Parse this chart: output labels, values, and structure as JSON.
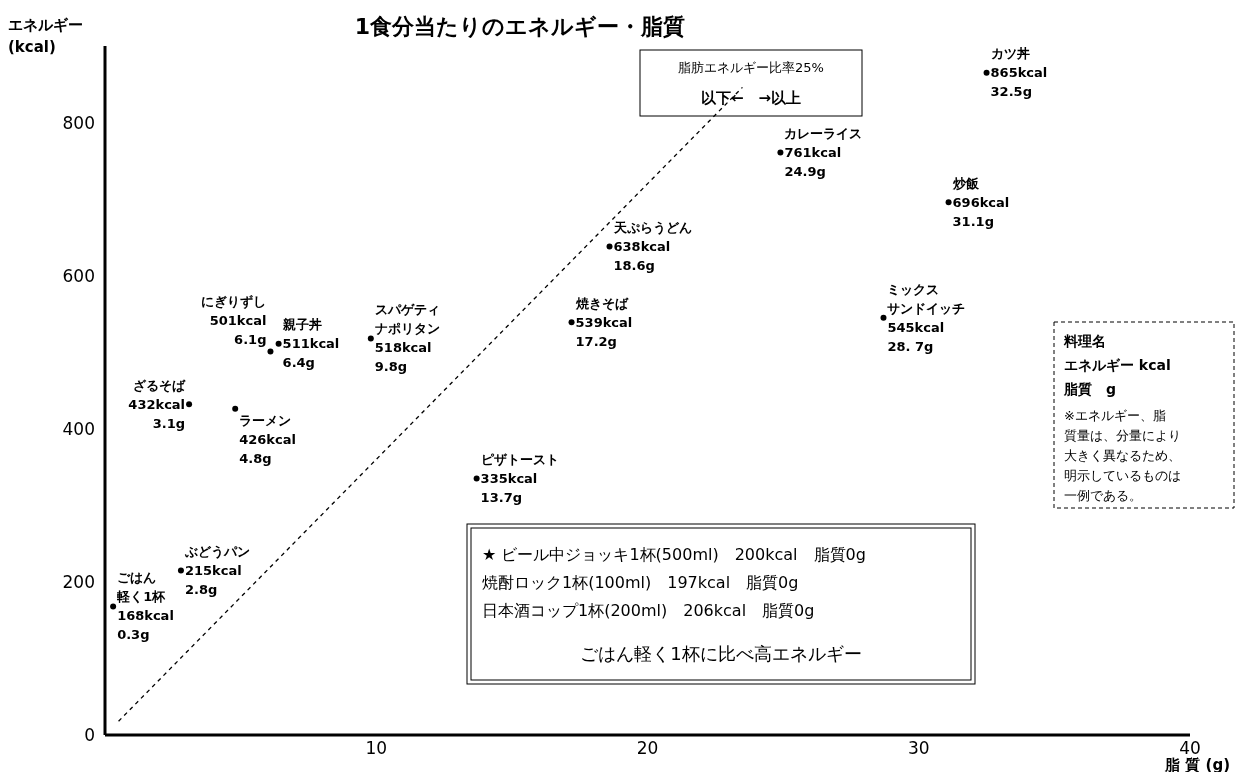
{
  "chart_data": {
    "type": "scatter",
    "title": "1食分当たりのエネルギー・脂質",
    "xlabel": "脂 質 (g)",
    "ylabel": "エネルギー\n(kcal)",
    "xlim": [
      0,
      40
    ],
    "ylim": [
      0,
      900
    ],
    "xticks": [
      10,
      20,
      30,
      40
    ],
    "yticks": [
      0,
      200,
      400,
      600,
      800
    ],
    "series": [
      {
        "marker": "circle",
        "color": "#000000",
        "x": [
          0.3,
          2.8,
          3.1,
          4.8,
          6.1,
          6.4,
          9.8,
          13.7,
          17.2,
          18.6,
          24.9,
          28.7,
          31.1,
          32.5
        ],
        "values": [
          168,
          215,
          432,
          426,
          501,
          511,
          518,
          335,
          539,
          638,
          761,
          545,
          696,
          865
        ],
        "value_labels": [
          "ごはん軽く1杯\n168kcal\n0.3g",
          "ぶどうパン\n215kcal\n2.8g",
          "ざるそば\n432kcal\n3.1g",
          "ラーメン\n426kcal\n4.8g",
          "にぎりずし\n501kcal\n6.1g",
          "親子丼\n511kcal\n6.4g",
          "スパゲティナポリタン\n518kcal\n9.8g",
          "ピザトースト\n335kcal\n13.7g",
          "焼きそば\n539kcal\n17.2g",
          "天ぷらうどん\n638kcal\n18.6g",
          "カレーライス\n761kcal\n24.9g",
          "ミックスサンドイッチ\n545kcal\n28. 7g",
          "炒飯\n696kcal\n31.1g",
          "カツ丼\n865kcal\n32.5g"
        ]
      },
      {
        "type": "line",
        "color": "#000000",
        "line_style": "dashed",
        "x": [
          0.5,
          23.5
        ],
        "values": [
          18,
          846
        ]
      }
    ],
    "annotations": [
      "脂肪エネルギー比率25%",
      "以下←　→以上",
      "料理名",
      "エネルギー kcal",
      "脂質　g",
      "※エネルギー、脂質量は、分量により大きく異なるため、明示しているものは一例である。",
      "★ ビール中ジョッキ1杯(500ml)　200kcal　脂質0g",
      "焼酎ロック1杯(100ml)　197kcal　脂質0g",
      "日本酒コップ1杯(200ml)　206kcal　脂質0g",
      "ごはん軽く1杯に比べ高エネルギー"
    ]
  }
}
